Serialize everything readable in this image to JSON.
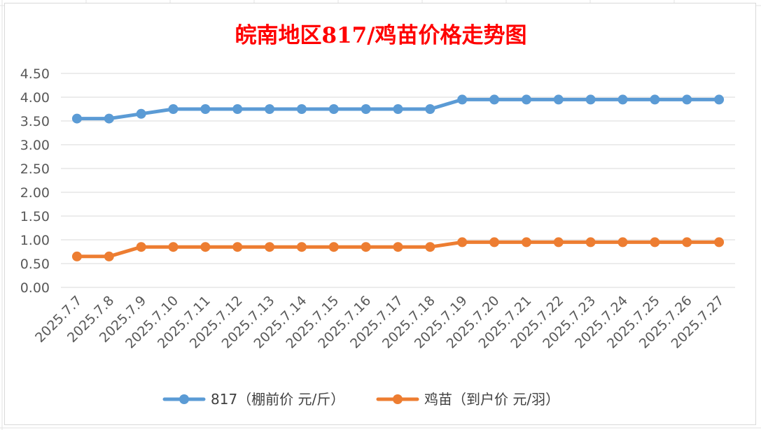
{
  "chart_data": {
    "type": "line",
    "title": "皖南地区817/鸡苗价格走势图",
    "xlabel": "",
    "ylabel": "",
    "categories": [
      "2025.7.7",
      "2025.7.8",
      "2025.7.9",
      "2025.7.10",
      "2025.7.11",
      "2025.7.12",
      "2025.7.13",
      "2025.7.14",
      "2025.7.15",
      "2025.7.16",
      "2025.7.17",
      "2025.7.18",
      "2025.7.19",
      "2025.7.20",
      "2025.7.21",
      "2025.7.22",
      "2025.7.23",
      "2025.7.24",
      "2025.7.25",
      "2025.7.26",
      "2025.7.27"
    ],
    "ylim": [
      0,
      4.5
    ],
    "yticks": [
      "0.00",
      "0.50",
      "1.00",
      "1.50",
      "2.00",
      "2.50",
      "3.00",
      "3.50",
      "4.00",
      "4.50"
    ],
    "grid": true,
    "legend_position": "bottom",
    "series": [
      {
        "name": "817（棚前价 元/斤）",
        "color": "#5b9bd5",
        "values": [
          3.55,
          3.55,
          3.65,
          3.75,
          3.75,
          3.75,
          3.75,
          3.75,
          3.75,
          3.75,
          3.75,
          3.75,
          3.95,
          3.95,
          3.95,
          3.95,
          3.95,
          3.95,
          3.95,
          3.95,
          3.95
        ]
      },
      {
        "name": "鸡苗（到户价 元/羽）",
        "color": "#ed7d31",
        "values": [
          0.65,
          0.65,
          0.85,
          0.85,
          0.85,
          0.85,
          0.85,
          0.85,
          0.85,
          0.85,
          0.85,
          0.85,
          0.95,
          0.95,
          0.95,
          0.95,
          0.95,
          0.95,
          0.95,
          0.95,
          0.95
        ]
      }
    ]
  }
}
